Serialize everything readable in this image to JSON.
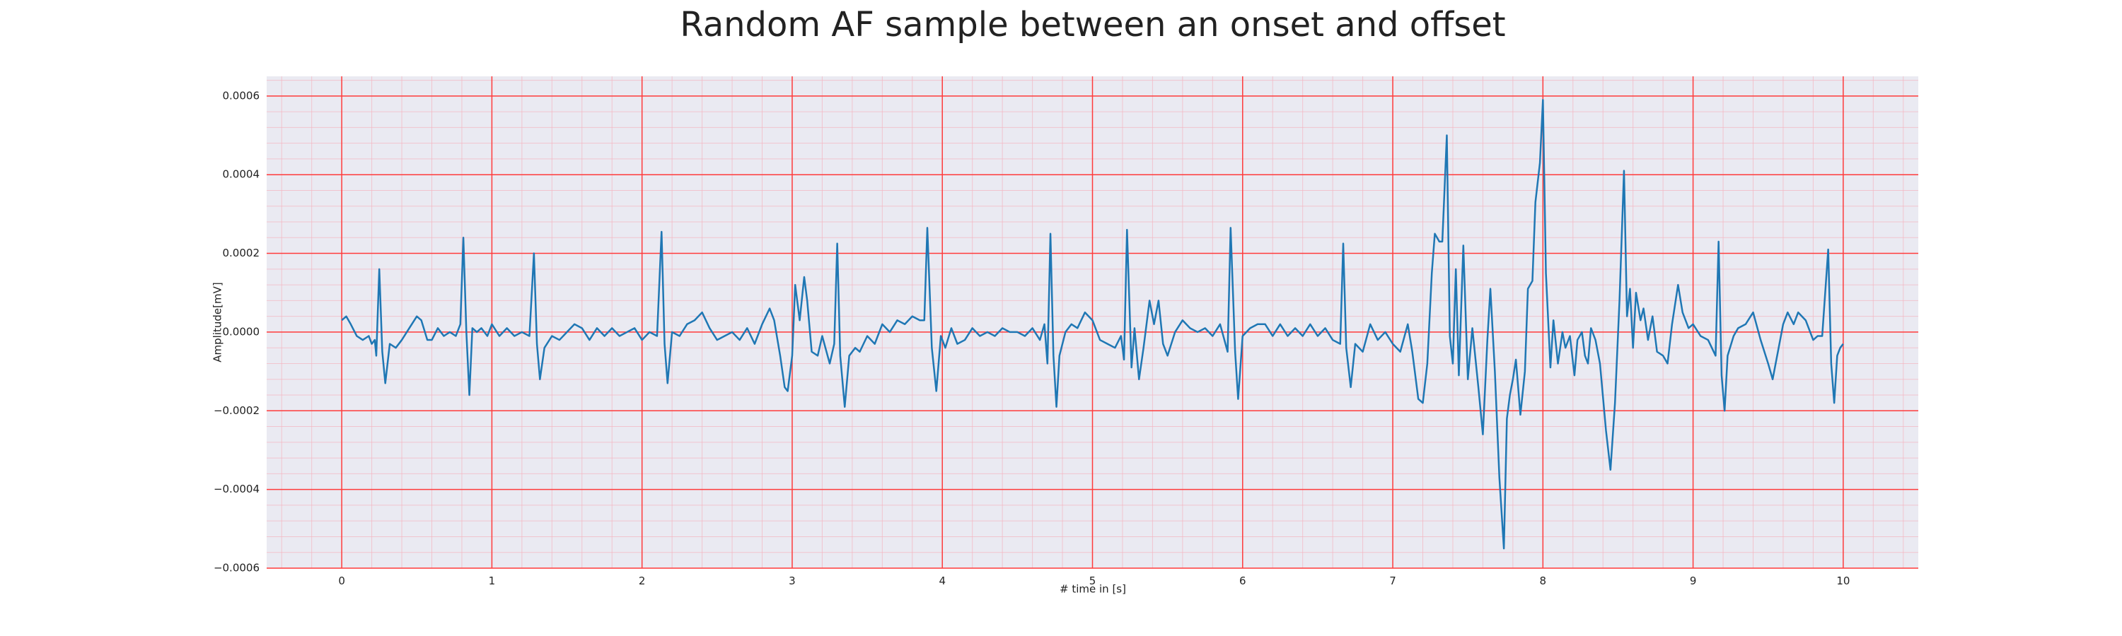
{
  "chart_data": {
    "type": "line",
    "title": "Random AF sample between an onset and offset",
    "xlabel": "# time in [s]",
    "ylabel": "Amplitude[mV]",
    "xlim": [
      -0.5,
      10.5
    ],
    "ylim": [
      -0.0006,
      0.00065
    ],
    "xticks": [
      0,
      1,
      2,
      3,
      4,
      5,
      6,
      7,
      8,
      9,
      10
    ],
    "yticks": [
      {
        "value": -0.0006,
        "label": "−0.0006"
      },
      {
        "value": -0.0004,
        "label": "−0.0004"
      },
      {
        "value": -0.0002,
        "label": "−0.0002"
      },
      {
        "value": 0,
        "label": "0.0000"
      },
      0.0002,
      0.0004,
      0.0006
    ],
    "grid": true,
    "grid_color": "#ff3b3b",
    "minor_grid_color": "#f5b5c0",
    "minor_divisions": 5,
    "background": "#eaeaf2",
    "x": [
      0,
      0.03,
      0.06,
      0.1,
      0.14,
      0.18,
      0.2,
      0.22,
      0.23,
      0.25,
      0.27,
      0.29,
      0.32,
      0.36,
      0.4,
      0.45,
      0.5,
      0.53,
      0.57,
      0.6,
      0.64,
      0.68,
      0.72,
      0.76,
      0.79,
      0.81,
      0.83,
      0.85,
      0.87,
      0.9,
      0.93,
      0.97,
      1.0,
      1.05,
      1.1,
      1.15,
      1.2,
      1.25,
      1.28,
      1.3,
      1.32,
      1.35,
      1.4,
      1.45,
      1.5,
      1.55,
      1.6,
      1.65,
      1.7,
      1.75,
      1.8,
      1.85,
      1.9,
      1.95,
      2.0,
      2.05,
      2.1,
      2.13,
      2.15,
      2.17,
      2.2,
      2.25,
      2.3,
      2.35,
      2.4,
      2.45,
      2.5,
      2.55,
      2.6,
      2.65,
      2.7,
      2.75,
      2.8,
      2.85,
      2.88,
      2.92,
      2.95,
      2.97,
      3.0,
      3.02,
      3.05,
      3.08,
      3.1,
      3.13,
      3.17,
      3.2,
      3.25,
      3.28,
      3.3,
      3.32,
      3.35,
      3.38,
      3.42,
      3.45,
      3.5,
      3.55,
      3.6,
      3.65,
      3.7,
      3.75,
      3.8,
      3.85,
      3.88,
      3.9,
      3.93,
      3.96,
      3.99,
      4.02,
      4.06,
      4.1,
      4.15,
      4.2,
      4.25,
      4.3,
      4.35,
      4.4,
      4.45,
      4.5,
      4.55,
      4.6,
      4.65,
      4.68,
      4.7,
      4.72,
      4.74,
      4.76,
      4.78,
      4.82,
      4.86,
      4.9,
      4.95,
      5.0,
      5.05,
      5.1,
      5.15,
      5.19,
      5.21,
      5.23,
      5.26,
      5.28,
      5.31,
      5.34,
      5.38,
      5.41,
      5.44,
      5.47,
      5.5,
      5.55,
      5.6,
      5.65,
      5.7,
      5.75,
      5.8,
      5.85,
      5.9,
      5.92,
      5.95,
      5.97,
      6.0,
      6.05,
      6.1,
      6.15,
      6.2,
      6.25,
      6.3,
      6.35,
      6.4,
      6.45,
      6.5,
      6.55,
      6.6,
      6.65,
      6.67,
      6.69,
      6.72,
      6.75,
      6.8,
      6.85,
      6.9,
      6.95,
      7.0,
      7.05,
      7.1,
      7.13,
      7.17,
      7.2,
      7.23,
      7.26,
      7.28,
      7.31,
      7.33,
      7.36,
      7.38,
      7.4,
      7.42,
      7.44,
      7.47,
      7.5,
      7.53,
      7.57,
      7.6,
      7.63,
      7.65,
      7.68,
      7.71,
      7.74,
      7.76,
      7.78,
      7.8,
      7.82,
      7.85,
      7.88,
      7.9,
      7.93,
      7.95,
      7.98,
      8.0,
      8.02,
      8.05,
      8.07,
      8.1,
      8.13,
      8.15,
      8.18,
      8.21,
      8.23,
      8.26,
      8.28,
      8.3,
      8.32,
      8.35,
      8.38,
      8.42,
      8.45,
      8.48,
      8.51,
      8.54,
      8.56,
      8.58,
      8.6,
      8.62,
      8.65,
      8.67,
      8.7,
      8.73,
      8.76,
      8.8,
      8.83,
      8.86,
      8.9,
      8.93,
      8.97,
      9.0,
      9.05,
      9.1,
      9.15,
      9.17,
      9.19,
      9.21,
      9.23,
      9.27,
      9.3,
      9.35,
      9.4,
      9.45,
      9.5,
      9.53,
      9.56,
      9.6,
      9.63,
      9.67,
      9.7,
      9.75,
      9.8,
      9.83,
      9.86,
      9.9,
      9.92,
      9.94,
      9.96,
      9.98,
      10.0
    ],
    "series": [
      {
        "color": "#1f77b4",
        "values": [
          3e-05,
          4e-05,
          2e-05,
          -1e-05,
          -2e-05,
          -1e-05,
          -3e-05,
          -2e-05,
          -6e-05,
          0.00016,
          -5e-05,
          -0.00013,
          -3e-05,
          -4e-05,
          -2e-05,
          1e-05,
          4e-05,
          3e-05,
          -2e-05,
          -2e-05,
          1e-05,
          -1e-05,
          0,
          -1e-05,
          2e-05,
          0.00024,
          0,
          -0.00016,
          1e-05,
          0,
          1e-05,
          -1e-05,
          2e-05,
          -1e-05,
          1e-05,
          -1e-05,
          0,
          -1e-05,
          0.0002,
          -3e-05,
          -0.00012,
          -4e-05,
          -1e-05,
          -2e-05,
          0,
          2e-05,
          1e-05,
          -2e-05,
          1e-05,
          -1e-05,
          1e-05,
          -1e-05,
          0,
          1e-05,
          -2e-05,
          0,
          -1e-05,
          0.000255,
          -3e-05,
          -0.00013,
          0,
          -1e-05,
          2e-05,
          3e-05,
          5e-05,
          1e-05,
          -2e-05,
          -1e-05,
          0,
          -2e-05,
          1e-05,
          -3e-05,
          2e-05,
          6e-05,
          3e-05,
          -6e-05,
          -0.00014,
          -0.00015,
          -6e-05,
          0.00012,
          3e-05,
          0.00014,
          8e-05,
          -5e-05,
          -6e-05,
          -1e-05,
          -8e-05,
          -3e-05,
          0.000225,
          -6e-05,
          -0.00019,
          -6e-05,
          -4e-05,
          -5e-05,
          -1e-05,
          -3e-05,
          2e-05,
          0,
          3e-05,
          2e-05,
          4e-05,
          3e-05,
          3e-05,
          0.000265,
          -4e-05,
          -0.00015,
          -1e-05,
          -4e-05,
          1e-05,
          -3e-05,
          -2e-05,
          1e-05,
          -1e-05,
          0,
          -1e-05,
          1e-05,
          0,
          0,
          -1e-05,
          1e-05,
          -2e-05,
          2e-05,
          -8e-05,
          0.00025,
          -6e-05,
          -0.00019,
          -6e-05,
          0,
          2e-05,
          1e-05,
          5e-05,
          3e-05,
          -2e-05,
          -3e-05,
          -4e-05,
          -1e-05,
          -7e-05,
          0.00026,
          -9e-05,
          1e-05,
          -0.00012,
          -4e-05,
          8e-05,
          2e-05,
          8e-05,
          -3e-05,
          -6e-05,
          0,
          3e-05,
          1e-05,
          0,
          1e-05,
          -1e-05,
          2e-05,
          -5e-05,
          0.000265,
          -5e-05,
          -0.00017,
          -1e-05,
          1e-05,
          2e-05,
          2e-05,
          -1e-05,
          2e-05,
          -1e-05,
          1e-05,
          -1e-05,
          2e-05,
          -1e-05,
          1e-05,
          -2e-05,
          -3e-05,
          0.000225,
          -4e-05,
          -0.00014,
          -3e-05,
          -5e-05,
          2e-05,
          -2e-05,
          0,
          -3e-05,
          -5e-05,
          2e-05,
          -5e-05,
          -0.00017,
          -0.00018,
          -8e-05,
          0.00015,
          0.00025,
          0.00023,
          0.00023,
          0.0005,
          -1e-05,
          -8e-05,
          0.00016,
          -0.00011,
          0.00022,
          -0.00012,
          1e-05,
          -0.00014,
          -0.00026,
          -2e-05,
          0.00011,
          -0.0001,
          -0.00037,
          -0.00055,
          -0.00022,
          -0.00016,
          -0.00012,
          -7e-05,
          -0.00021,
          -0.0001,
          0.00011,
          0.00013,
          0.00033,
          0.00043,
          0.00059,
          0.00015,
          -9e-05,
          3e-05,
          -8e-05,
          0,
          -4e-05,
          -1e-05,
          -0.00011,
          -2e-05,
          0,
          -6e-05,
          -8e-05,
          1e-05,
          -2e-05,
          -8e-05,
          -0.00025,
          -0.00035,
          -0.00018,
          8e-05,
          0.00041,
          4e-05,
          0.00011,
          -4e-05,
          0.0001,
          3e-05,
          6e-05,
          -2e-05,
          4e-05,
          -5e-05,
          -6e-05,
          -8e-05,
          2e-05,
          0.00012,
          5e-05,
          1e-05,
          2e-05,
          -1e-05,
          -2e-05,
          -6e-05,
          0.00023,
          -0.00011,
          -0.0002,
          -6e-05,
          -1e-05,
          1e-05,
          2e-05,
          5e-05,
          -2e-05,
          -8e-05,
          -0.00012,
          -6e-05,
          2e-05,
          5e-05,
          2e-05,
          5e-05,
          3e-05,
          -2e-05,
          -1e-05,
          -1e-05,
          0.00021,
          -8e-05,
          -0.00018,
          -6e-05,
          -4e-05,
          -3e-05
        ]
      }
    ]
  }
}
